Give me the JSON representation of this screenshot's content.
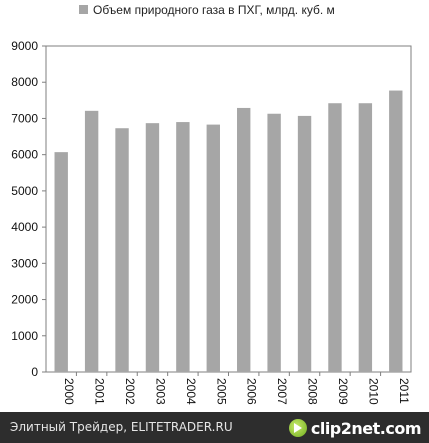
{
  "chart_data": {
    "type": "bar",
    "legend": "Объем природного газа в ПХГ, млрд. куб. м",
    "legend_position": "top",
    "categories": [
      "2000",
      "2001",
      "2002",
      "2003",
      "2004",
      "2005",
      "2006",
      "2007",
      "2008",
      "2009",
      "2010",
      "2011"
    ],
    "series": [
      {
        "name": "Объем природного газа в ПХГ, млрд. куб. м",
        "values": [
          6070,
          7210,
          6730,
          6870,
          6900,
          6830,
          7290,
          7130,
          7070,
          7420,
          7420,
          7770
        ]
      }
    ],
    "ylim": [
      0,
      9000
    ],
    "yticks": [
      0,
      1000,
      2000,
      3000,
      4000,
      5000,
      6000,
      7000,
      8000,
      9000
    ],
    "grid": false,
    "bar_color": "#a6a6a6"
  },
  "footer": {
    "caption": "Элитный Трейдер, ELITETRADER.RU",
    "logo_text": "clip2net.com"
  }
}
